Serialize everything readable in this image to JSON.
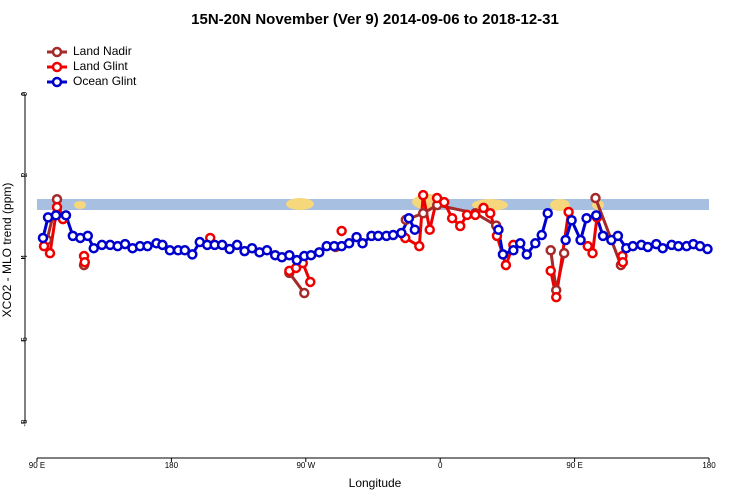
{
  "chart_data": {
    "type": "line",
    "title": "15N-20N November (Ver 9)   2014-09-06 to 2018-12-31",
    "xlabel": "Longitude",
    "ylabel": "XCO2 - MLO trend (ppm)",
    "xlim": [
      90,
      540
    ],
    "ylim": [
      -8.85,
      1.3
    ],
    "xticks": [
      {
        "value": 90,
        "label": "90 E"
      },
      {
        "value": 180,
        "label": "180"
      },
      {
        "value": 270,
        "label": "90 W"
      },
      {
        "value": 360,
        "label": "0"
      },
      {
        "value": 450,
        "label": "90 E"
      },
      {
        "value": 540,
        "label": "180"
      }
    ],
    "yticks": [
      -8,
      -6,
      -4,
      -2,
      0
    ],
    "legend": "top-left",
    "series": [
      {
        "name": "Land Nadir",
        "color": "#a52a2a",
        "x": [
          96.7,
          103.4,
          107.4,
          null,
          121.5,
          null,
          259,
          269,
          null,
          290,
          null,
          337,
          348.6,
          358,
          383.5,
          397.5,
          null,
          434,
          437.7,
          443,
          null,
          464,
          481
        ],
        "values": [
          -3.55,
          -2.56,
          -3.04,
          null,
          -4.16,
          null,
          -4.35,
          -4.84,
          null,
          -3.72,
          null,
          -3.06,
          -2.9,
          -2.7,
          -2.9,
          -3.2,
          null,
          -3.8,
          -4.77,
          -3.87,
          null,
          -2.53,
          -4.16
        ]
      },
      {
        "name": "Land Glint",
        "color": "#ee0000",
        "x": [
          94.7,
          98.7,
          103.4,
          107.4,
          null,
          121.5,
          122,
          null,
          206,
          null,
          259,
          263.5,
          268,
          273,
          null,
          294,
          null,
          336.6,
          346,
          348.6,
          353,
          357.9,
          362.7,
          368,
          373.4,
          378,
          383.5,
          389,
          393.5,
          398,
          404,
          409,
          null,
          434,
          437.7,
          446,
          null,
          458.8,
          462,
          465,
          null,
          482,
          482.3
        ],
        "values": [
          -3.7,
          -3.87,
          -2.75,
          -3.04,
          null,
          -3.94,
          -4.09,
          null,
          -3.5,
          null,
          -4.3,
          -4.23,
          -4.11,
          -4.57,
          null,
          -3.33,
          null,
          -3.5,
          -3.7,
          -2.46,
          -3.3,
          -2.53,
          -2.63,
          -3.02,
          -3.21,
          -2.94,
          -2.94,
          -2.77,
          -2.9,
          -3.45,
          -4.16,
          -3.67,
          null,
          -4.3,
          -4.94,
          -2.87,
          null,
          -3.7,
          -3.87,
          -3.0,
          null,
          -3.94,
          -4.09
        ]
      },
      {
        "name": "Ocean Glint",
        "color": "#0000cc",
        "x": [
          94,
          97.4,
          102.7,
          109.4,
          114,
          119,
          124,
          128,
          133.5,
          139,
          144,
          149,
          154,
          159,
          164,
          170,
          174,
          179,
          184.5,
          189,
          194,
          199,
          204,
          209,
          214,
          219,
          224,
          229,
          234,
          239,
          244,
          249.5,
          254,
          259,
          264,
          269,
          273.5,
          279,
          284,
          289,
          294,
          299,
          304,
          308,
          314,
          318.5,
          324,
          328.5,
          334,
          339,
          343,
          null,
          399,
          402,
          409,
          413.6,
          418,
          423.7,
          428,
          432,
          null,
          444,
          448,
          454,
          458,
          464.5,
          469,
          474.6,
          479,
          484.6,
          489,
          494.7,
          499,
          504.7,
          509,
          515,
          519.5,
          525,
          529.5,
          534,
          539
        ],
        "values": [
          -3.5,
          -3.0,
          -2.95,
          -2.95,
          -3.45,
          -3.5,
          -3.45,
          -3.75,
          -3.67,
          -3.67,
          -3.7,
          -3.65,
          -3.75,
          -3.7,
          -3.7,
          -3.63,
          -3.67,
          -3.8,
          -3.8,
          -3.8,
          -3.9,
          -3.6,
          -3.67,
          -3.67,
          -3.67,
          -3.77,
          -3.67,
          -3.82,
          -3.75,
          -3.85,
          -3.8,
          -3.92,
          -3.97,
          -3.92,
          -4.04,
          -3.94,
          -3.92,
          -3.85,
          -3.7,
          -3.7,
          -3.7,
          -3.63,
          -3.48,
          -3.63,
          -3.45,
          -3.45,
          -3.45,
          -3.43,
          -3.38,
          -3.02,
          -3.3,
          null,
          -3.3,
          -3.9,
          -3.8,
          -3.63,
          -3.9,
          -3.63,
          -3.43,
          -2.9,
          null,
          -3.55,
          -3.07,
          -3.55,
          -3.02,
          -2.95,
          -3.45,
          -3.55,
          -3.45,
          -3.75,
          -3.7,
          -3.67,
          -3.72,
          -3.65,
          -3.75,
          -3.67,
          -3.7,
          -3.7,
          -3.65,
          -3.7,
          -3.77
        ]
      }
    ]
  }
}
